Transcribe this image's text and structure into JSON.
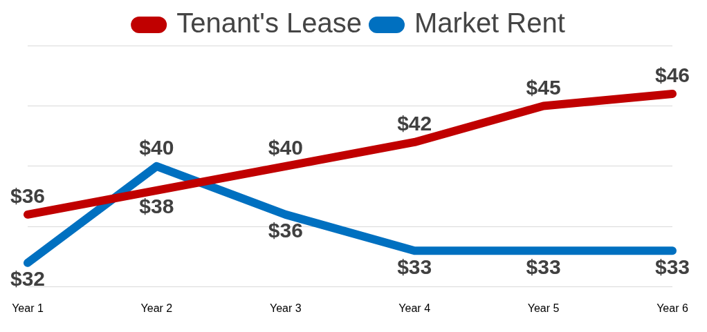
{
  "chart_data": {
    "type": "line",
    "categories": [
      "Year 1",
      "Year 2",
      "Year 3",
      "Year 4",
      "Year 5",
      "Year 6"
    ],
    "series": [
      {
        "name": "Tenant's Lease",
        "color": "#c00000",
        "values": [
          36,
          38,
          40,
          42,
          45,
          46
        ],
        "value_labels": [
          "$36",
          "$38",
          "$40",
          "$42",
          "$45",
          "$46"
        ]
      },
      {
        "name": "Market Rent",
        "color": "#0070c0",
        "values": [
          32,
          40,
          36,
          33,
          33,
          33
        ],
        "value_labels": [
          "$32",
          "$40",
          "$36",
          "$33",
          "$33",
          "$33"
        ]
      }
    ],
    "ylim": [
      30,
      50
    ],
    "yticks": [
      30,
      35,
      40,
      45,
      50
    ],
    "grid": true,
    "legend": "top",
    "data_labels": true,
    "tick_labels": "x"
  }
}
